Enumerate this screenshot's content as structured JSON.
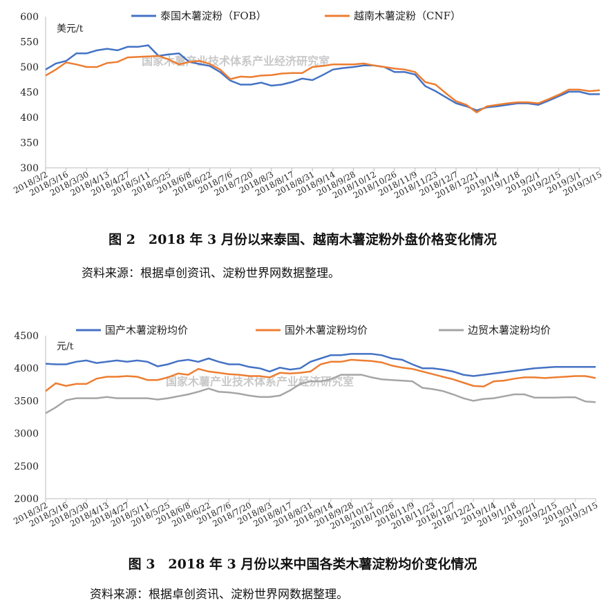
{
  "chart_data": [
    {
      "type": "line",
      "ylabel": "美元/t",
      "watermark": "国家木薯产业技术体系产业经济研究室",
      "caption": "图 2　2018 年 3 月份以来泰国、越南木薯淀粉外盘价格变化情况",
      "source": "资料来源：根据卓创资讯、淀粉世界网数据整理。",
      "categories": [
        "2018/3/2",
        null,
        "2018/3/16",
        null,
        "2018/3/30",
        null,
        "2018/4/13",
        null,
        "2018/4/27",
        null,
        "2018/5/11",
        null,
        "2018/5/25",
        null,
        "2018/6/8",
        null,
        "2018/6/22",
        null,
        "2018/7/6",
        null,
        "2018/7/20",
        null,
        "2018/8/3",
        null,
        "2018/8/17",
        null,
        "2018/8/31",
        null,
        "2018/9/14",
        null,
        "2018/9/28",
        null,
        "2018/10/12",
        null,
        "2018/10/26",
        null,
        "2018/11/9",
        null,
        "2018/11/23",
        null,
        "2018/12/7",
        null,
        "2018/12/21",
        null,
        "2019/1/4",
        null,
        "2019/1/18",
        null,
        "2019/2/1",
        null,
        "2019/2/15",
        null,
        "2019/3/1",
        null,
        "2019/3/15"
      ],
      "ylim": [
        300,
        600
      ],
      "yticks": [
        300,
        350,
        400,
        450,
        500,
        550,
        600
      ],
      "series": [
        {
          "name": "泰国木薯淀粉（FOB）",
          "color": "#4472c4",
          "values": [
            495,
            507,
            512,
            527,
            527,
            533,
            536,
            533,
            540,
            540,
            543,
            522,
            525,
            527,
            510,
            506,
            502,
            490,
            473,
            465,
            465,
            469,
            463,
            465,
            470,
            477,
            474,
            484,
            495,
            498,
            500,
            503,
            503,
            500,
            490,
            490,
            485,
            462,
            452,
            440,
            428,
            422,
            414,
            420,
            422,
            425,
            428,
            428,
            425,
            433,
            442,
            451,
            451,
            446,
            446
          ]
        },
        {
          "name": "越南木薯淀粉（CNF）",
          "color": "#ed7d31",
          "values": [
            483,
            495,
            509,
            505,
            500,
            500,
            508,
            510,
            519,
            520,
            521,
            522,
            515,
            505,
            510,
            512,
            506,
            495,
            476,
            481,
            480,
            483,
            484,
            487,
            488,
            488,
            500,
            502,
            505,
            505,
            505,
            507,
            503,
            500,
            497,
            495,
            490,
            470,
            465,
            448,
            432,
            425,
            410,
            422,
            425,
            428,
            430,
            430,
            428,
            436,
            445,
            455,
            455,
            452,
            454
          ]
        }
      ]
    },
    {
      "type": "line",
      "ylabel": "元/t",
      "watermark": "国家木薯产业技术体系产业经济研究室",
      "caption": "图 3　2018 年 3 月份以来中国各类木薯淀粉均价变化情况",
      "source": "资料来源：根据卓创资讯、淀粉世界网数据整理。",
      "categories": [
        "2018/3/2",
        null,
        "2018/3/16",
        null,
        "2018/3/30",
        null,
        "2018/4/13",
        null,
        "2018/4/27",
        null,
        "2018/5/11",
        null,
        "2018/5/25",
        null,
        "2018/6/8",
        null,
        "2018/6/22",
        null,
        "2018/7/6",
        null,
        "2018/7/20",
        null,
        "2018/8/3",
        null,
        "2018/8/17",
        null,
        "2018/8/31",
        null,
        "2018/9/14",
        null,
        "2018/9/28",
        null,
        "2018/10/12",
        null,
        "2018/10/26",
        null,
        "2018/11/9",
        null,
        "2018/11/23",
        null,
        "2018/12/7",
        null,
        "2018/12/21",
        null,
        "2019/1/4",
        null,
        "2019/1/18",
        null,
        "2019/2/1",
        null,
        "2019/2/15",
        null,
        "2019/3/1",
        null,
        "2019/3/15"
      ],
      "ylim": [
        2000,
        4500
      ],
      "yticks": [
        2000,
        2500,
        3000,
        3500,
        4000,
        4500
      ],
      "series": [
        {
          "name": "国产木薯淀粉均价",
          "color": "#4472c4",
          "values": [
            4070,
            4060,
            4060,
            4100,
            4120,
            4080,
            4100,
            4120,
            4100,
            4120,
            4100,
            4030,
            4060,
            4110,
            4130,
            4100,
            4150,
            4100,
            4060,
            4060,
            4020,
            4000,
            3950,
            4010,
            3980,
            4000,
            4100,
            4150,
            4200,
            4200,
            4220,
            4220,
            4220,
            4200,
            4150,
            4130,
            4060,
            4000,
            4000,
            3980,
            3950,
            3900,
            3880,
            3900,
            3920,
            3940,
            3960,
            3980,
            4000,
            4010,
            4020,
            4020,
            4020,
            4020,
            4020
          ]
        },
        {
          "name": "国外木薯淀粉均价",
          "color": "#ed7d31",
          "values": [
            3650,
            3770,
            3730,
            3760,
            3760,
            3840,
            3870,
            3870,
            3880,
            3870,
            3820,
            3820,
            3860,
            3920,
            3900,
            3990,
            3950,
            3930,
            3910,
            3900,
            3880,
            3880,
            3860,
            3930,
            3920,
            3930,
            3950,
            4060,
            4100,
            4100,
            4130,
            4120,
            4110,
            4090,
            4040,
            4010,
            3990,
            3950,
            3910,
            3870,
            3830,
            3780,
            3730,
            3720,
            3800,
            3810,
            3840,
            3860,
            3860,
            3850,
            3860,
            3870,
            3880,
            3880,
            3850
          ]
        },
        {
          "name": "边贸木薯淀粉均价",
          "color": "#a5a5a5",
          "values": [
            3310,
            3400,
            3510,
            3540,
            3540,
            3540,
            3560,
            3540,
            3540,
            3540,
            3540,
            3520,
            3540,
            3570,
            3600,
            3640,
            3690,
            3640,
            3630,
            3610,
            3580,
            3560,
            3560,
            3580,
            3660,
            3760,
            3800,
            3800,
            3830,
            3900,
            3900,
            3900,
            3860,
            3830,
            3820,
            3810,
            3800,
            3700,
            3680,
            3650,
            3600,
            3540,
            3500,
            3530,
            3540,
            3570,
            3600,
            3600,
            3550,
            3550,
            3550,
            3555,
            3555,
            3490,
            3480
          ]
        }
      ]
    }
  ]
}
